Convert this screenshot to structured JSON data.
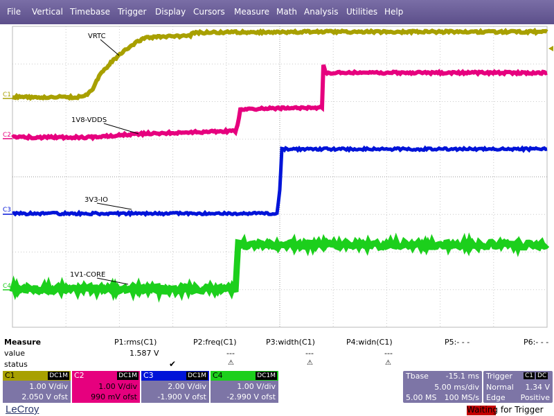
{
  "menu": [
    "File",
    "Vertical",
    "Timebase",
    "Trigger",
    "Display",
    "Cursors",
    "Measure",
    "Math",
    "Analysis",
    "Utilities",
    "Help"
  ],
  "traces": [
    {
      "id": "C1",
      "color": "#a8a000",
      "label": "VRTC"
    },
    {
      "id": "C2",
      "color": "#e6007e",
      "label": "1V8-VDDS"
    },
    {
      "id": "C3",
      "color": "#0014d8",
      "label": "3V3-IO"
    },
    {
      "id": "C4",
      "color": "#1ccf1c",
      "label": "1V1-CORE"
    }
  ],
  "measure": {
    "title": "Measure",
    "row_value": "value",
    "row_status": "status",
    "params": [
      {
        "name": "P1:rms(C1)",
        "value": "1.587 V",
        "status": "check"
      },
      {
        "name": "P2:freq(C1)",
        "value": "---",
        "status": "warn"
      },
      {
        "name": "P3:width(C1)",
        "value": "---",
        "status": "warn"
      },
      {
        "name": "P4:widn(C1)",
        "value": "---",
        "status": "warn"
      },
      {
        "name": "P5:- - -",
        "value": "",
        "status": ""
      },
      {
        "name": "P6:- - -",
        "value": "",
        "status": ""
      }
    ]
  },
  "channels": [
    {
      "name": "C1",
      "coupling": "DC1M",
      "vdiv": "1.00 V/div",
      "offset": "2.050 V ofst",
      "color": "#a8a000"
    },
    {
      "name": "C2",
      "coupling": "DC1M",
      "vdiv": "1.00 V/div",
      "offset": "990 mV ofst",
      "color": "#e6007e"
    },
    {
      "name": "C3",
      "coupling": "DC1M",
      "vdiv": "2.00 V/div",
      "offset": "-1.900 V ofst",
      "color": "#0014d8"
    },
    {
      "name": "C4",
      "coupling": "DC1M",
      "vdiv": "1.00 V/div",
      "offset": "-2.990 V ofst",
      "color": "#1ccf1c"
    }
  ],
  "timebase": {
    "label": "Tbase",
    "delay": "-15.1 ms",
    "tdiv": "5.00 ms/div",
    "samples": "5.00 MS",
    "rate": "100 MS/s"
  },
  "trigger": {
    "label": "Trigger",
    "source": "C1",
    "coupling": "DC",
    "mode": "Normal",
    "level": "1.34 V",
    "type": "Edge",
    "slope": "Positive"
  },
  "brand": "LeCroy",
  "status_text": "Waiting for Trigger"
}
